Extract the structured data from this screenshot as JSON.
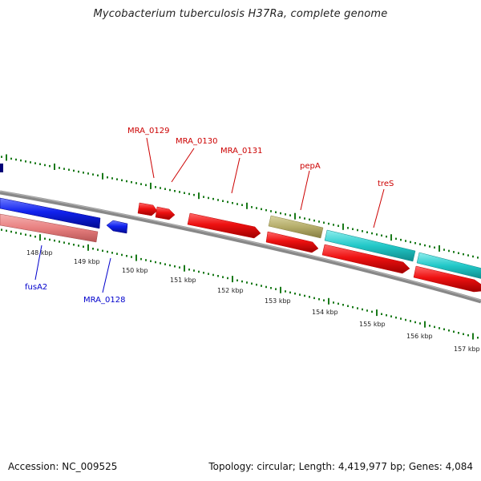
{
  "title": "Mycobacterium tuberculosis H37Ra, complete genome",
  "footer": {
    "accession": "Accession: NC_009525",
    "summary": "Topology: circular; Length: 4,419,977 bp; Genes: 4,084"
  },
  "axis": {
    "tick_labels": [
      "148 kbp",
      "149 kbp",
      "150 kbp",
      "151 kbp",
      "152 kbp",
      "153 kbp",
      "154 kbp",
      "155 kbp",
      "156 kbp",
      "157 kbp"
    ]
  },
  "colors": {
    "red_gene": "#ee1111",
    "blue_gene": "#1122ee",
    "pink_gene": "#e88080",
    "olive_gene": "#b5ad6a",
    "cyan_gene": "#22c8c8",
    "label_red": "#cc0000",
    "label_blue": "#0000cc",
    "tick_green": "#1a7a1a",
    "backbone": "#888888"
  },
  "gene_labels": {
    "top": [
      "MRA_0129",
      "MRA_0130",
      "MRA_0131",
      "pepA",
      "treS"
    ],
    "bottom": [
      "fusA2",
      "MRA_0128"
    ]
  }
}
